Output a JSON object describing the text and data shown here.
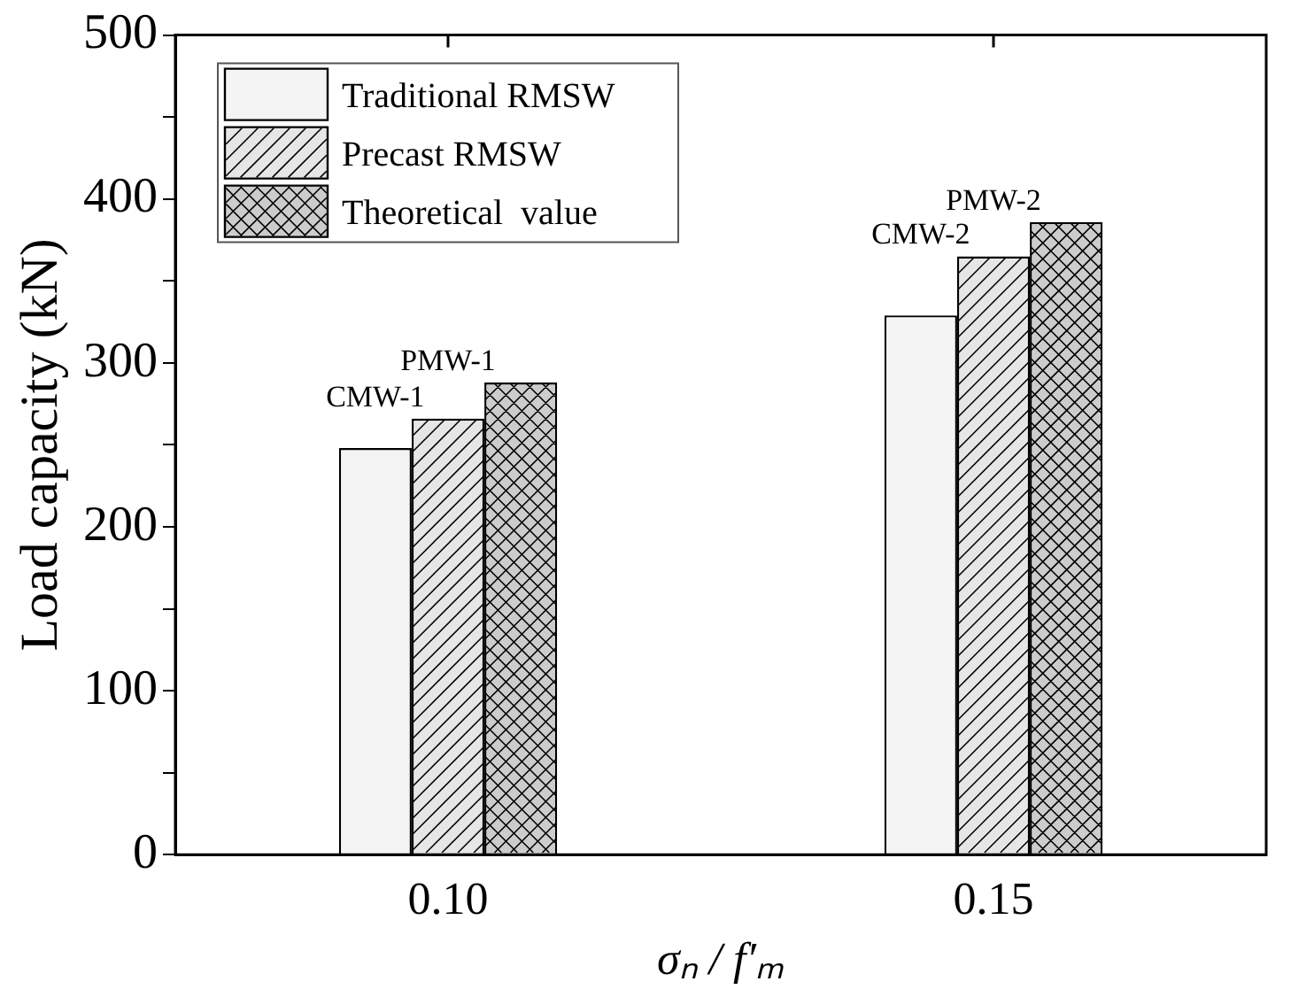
{
  "chart_data": {
    "type": "bar",
    "xlabel": "σₙ / f′ₘ",
    "ylabel": "Load capacity (kN)",
    "categories": [
      "0.10",
      "0.15"
    ],
    "series": [
      {
        "name": "Traditional RMSW",
        "color": "#f4f4f4",
        "values": [
          248,
          329
        ]
      },
      {
        "name": "Precast RMSW",
        "color": "#e6e6e6",
        "values": [
          266,
          365
        ]
      },
      {
        "name": "Theoretical  value",
        "color": "#cccccc",
        "values": [
          288,
          386
        ]
      }
    ],
    "ylim": [
      0,
      500
    ],
    "yticks": [
      0,
      {
        "value": 50,
        "label": null
      },
      100,
      {
        "value": 150,
        "label": null
      },
      200,
      {
        "value": 250,
        "label": null
      },
      300,
      {
        "value": 350,
        "label": null
      },
      400,
      {
        "value": 450,
        "label": null
      },
      500
    ],
    "annotations": [
      {
        "text": "CMW-1",
        "x": "0.10",
        "y": 248
      },
      {
        "text": "PMW-1",
        "x": "0.10",
        "y": 266
      },
      {
        "text": "CMW-2",
        "x": "0.15",
        "y": 329
      },
      {
        "text": "PMW-2",
        "x": "0.15",
        "y": 365
      }
    ],
    "legend": "top left",
    "grid": false
  }
}
